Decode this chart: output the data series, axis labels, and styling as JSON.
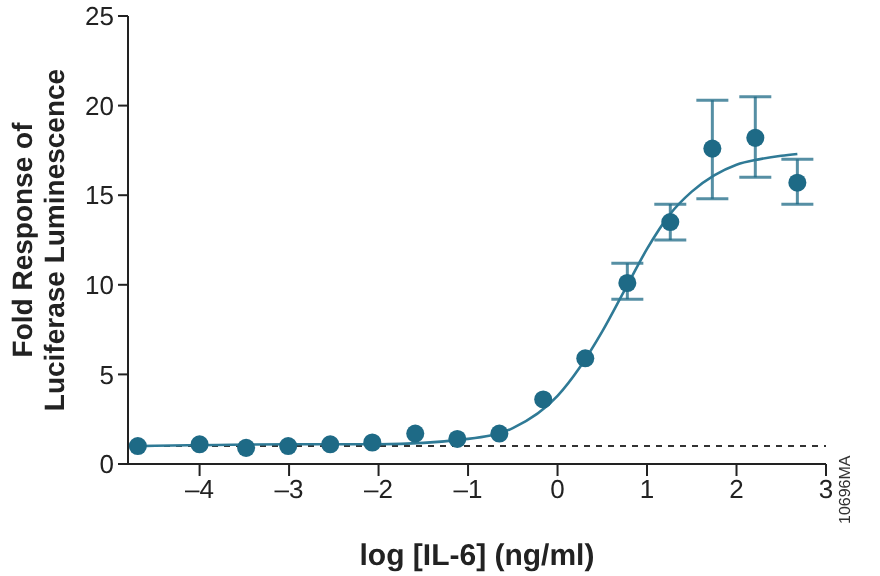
{
  "chart_data": {
    "type": "scatter",
    "xlabel": "log [IL-6] (ng/ml)",
    "ylabel": "Fold Response of Luciferase Luminescence",
    "xlim": [
      -4.8,
      3
    ],
    "xticks": [
      {
        "value": -4,
        "label": "–4"
      },
      {
        "value": -3,
        "label": "–3"
      },
      {
        "value": -2,
        "label": "–2"
      },
      {
        "value": -1,
        "label": "–1"
      },
      0,
      1,
      2,
      3
    ],
    "ylim": [
      0,
      25
    ],
    "yticks": [
      0,
      5,
      10,
      15,
      20,
      25
    ],
    "series": [
      {
        "marker": "circle",
        "color": "#1e6a86",
        "x": [
          -4.69,
          -4,
          -3.48,
          -3.01,
          -2.54,
          -2.07,
          -1.59,
          -1.12,
          -0.65,
          -0.16,
          0.31,
          0.78,
          1.26,
          1.73,
          2.21,
          2.68
        ],
        "values": [
          1.0,
          1.1,
          0.9,
          1.0,
          1.1,
          1.2,
          1.7,
          1.4,
          1.7,
          3.6,
          5.9,
          10.1,
          13.5,
          17.6,
          18.2,
          15.7
        ],
        "errors": [
          null,
          null,
          null,
          null,
          null,
          null,
          null,
          null,
          null,
          null,
          null,
          [
            9.2,
            11.2
          ],
          [
            12.5,
            14.5
          ],
          [
            14.8,
            20.3
          ],
          [
            16.0,
            20.5
          ],
          [
            14.5,
            17.0
          ]
        ]
      },
      {
        "type": "line",
        "marker": "none",
        "line_style": "solid",
        "color": "#2f7a96",
        "x": [
          -4.69,
          -3,
          -2,
          -1,
          -0.5,
          0,
          0.25,
          0.5,
          0.75,
          1,
          1.25,
          1.5,
          1.75,
          2,
          2.25,
          2.5,
          2.68
        ],
        "values": [
          1.0,
          1.1,
          1.1,
          1.4,
          2.0,
          3.8,
          5.4,
          7.4,
          9.7,
          12.0,
          13.9,
          15.2,
          16.1,
          16.7,
          17.0,
          17.2,
          17.3
        ]
      }
    ],
    "ref_lines": [
      {
        "axis": "y",
        "value": 1,
        "label": null,
        "color": "#333333",
        "line_style": "dotted"
      }
    ],
    "annotations": [
      "10696MA"
    ]
  }
}
